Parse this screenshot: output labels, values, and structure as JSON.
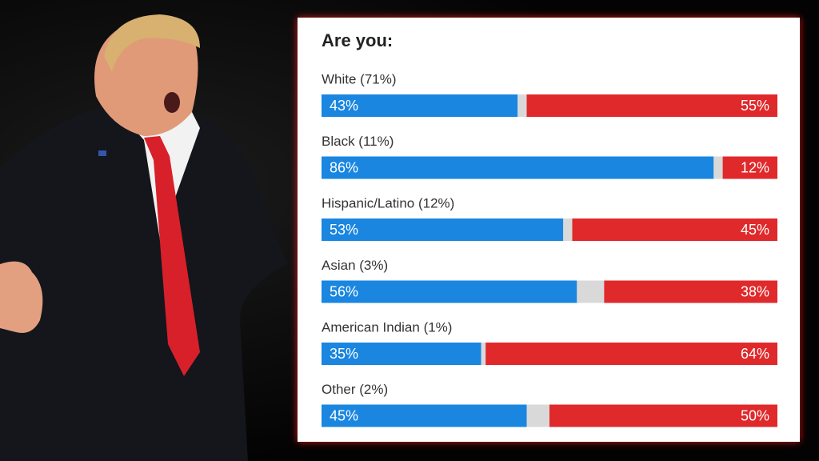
{
  "chart_data": {
    "type": "stacked-bar-split",
    "title": "Are you:",
    "categories": [
      "White (71%)",
      "Black (11%)",
      "Hispanic/Latino (12%)",
      "Asian (3%)",
      "American Indian (1%)",
      "Other (2%)"
    ],
    "series": [
      {
        "color": "#1a86e0",
        "values": [
          43,
          86,
          53,
          56,
          35,
          45
        ],
        "value_labels": [
          "43%",
          "86%",
          "53%",
          "56%",
          "35%",
          "45%"
        ]
      },
      {
        "color": "#e0292b",
        "values": [
          55,
          12,
          45,
          38,
          64,
          50
        ],
        "value_labels": [
          "55%",
          "12%",
          "45%",
          "38%",
          "64%",
          "50%"
        ]
      }
    ],
    "xlim": [
      0,
      100
    ]
  }
}
